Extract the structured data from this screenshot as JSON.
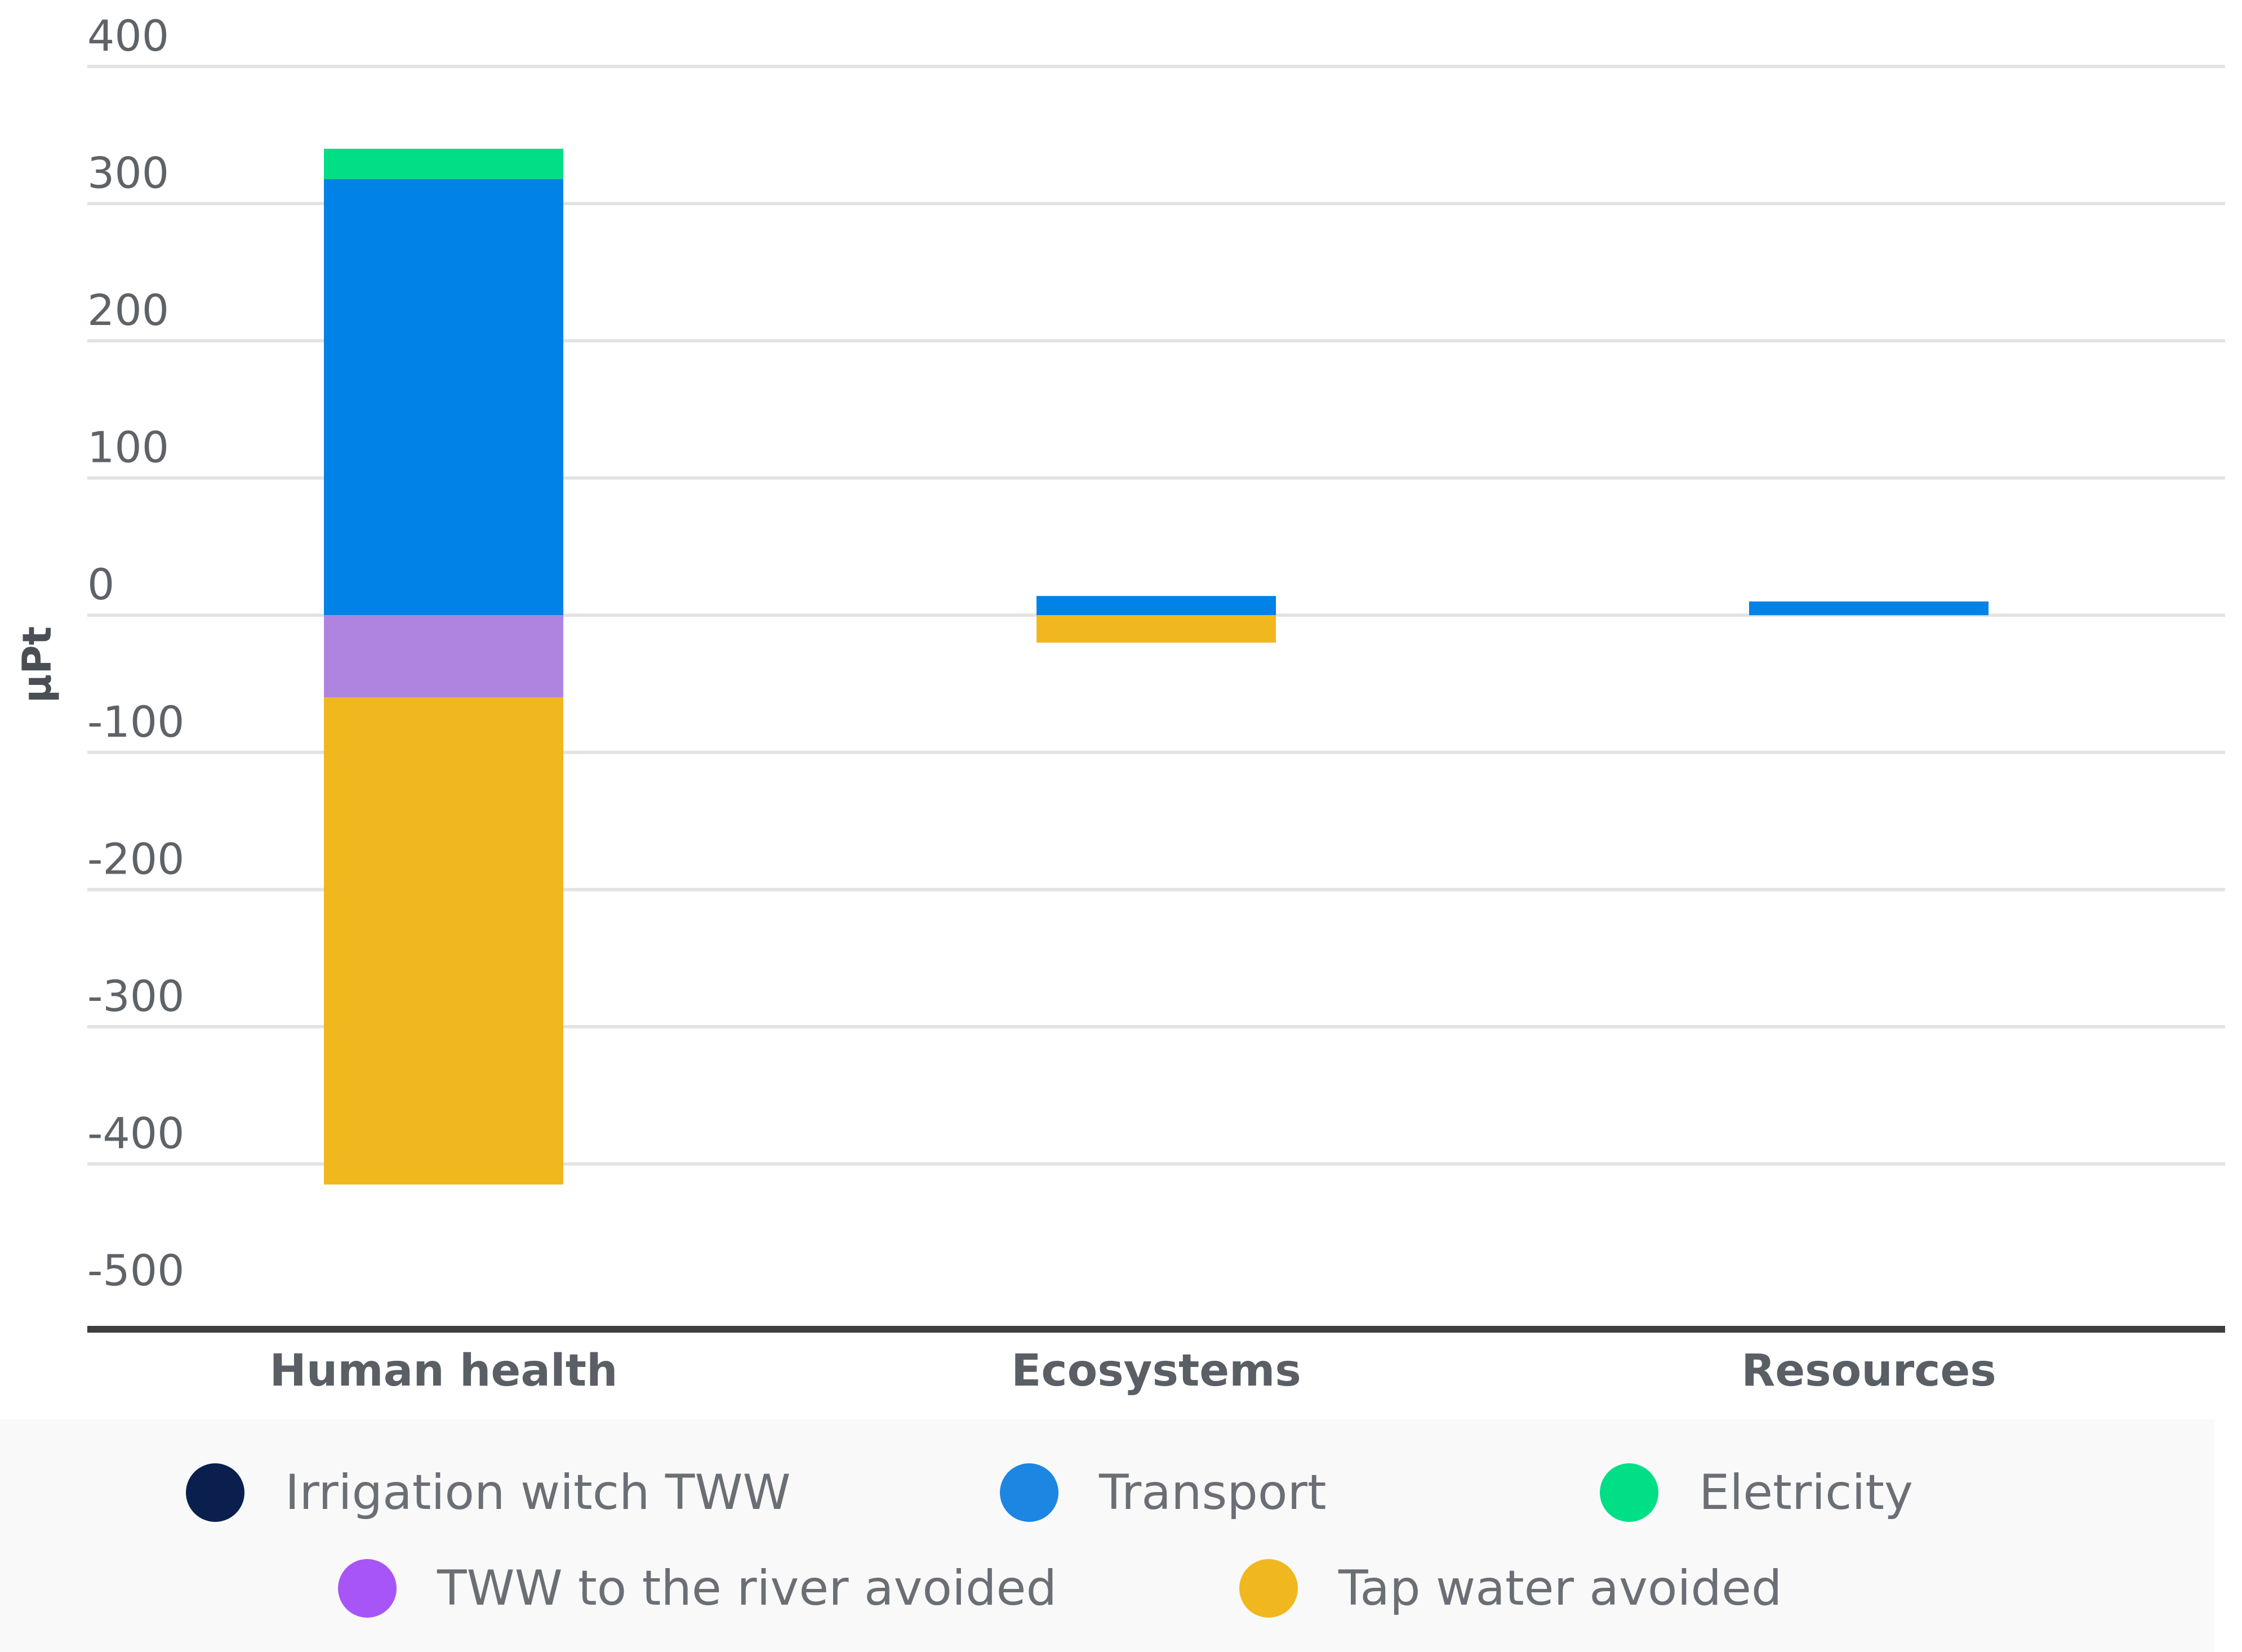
{
  "chart_data": {
    "type": "bar",
    "stacked": true,
    "categories": [
      "Human health",
      "Ecosystems",
      "Resources"
    ],
    "ylabel": "µPt",
    "xlabel": "",
    "ylim": [
      -500,
      400
    ],
    "yticks": [
      "400",
      "300",
      "200",
      "100",
      "0",
      "-100",
      "-200",
      "-300",
      "-400",
      "-500"
    ],
    "ytick_values": [
      400,
      300,
      200,
      100,
      0,
      -100,
      -200,
      -300,
      -400,
      -500
    ],
    "grid": true,
    "legend_position": "bottom",
    "series": [
      {
        "name": "Irrigation witch TWW",
        "color": "#0a1f4e",
        "values": [
          0,
          0,
          0
        ]
      },
      {
        "name": "Transport",
        "color": "#0082e6",
        "values": [
          318,
          14,
          10
        ]
      },
      {
        "name": "Eletricity",
        "color": "#00df86",
        "values": [
          22,
          0,
          0
        ]
      },
      {
        "name": "TWW to the river avoided",
        "color": "#ae84e0",
        "values": [
          -60,
          0,
          0
        ]
      },
      {
        "name": "Tap water avoided",
        "color": "#f0b81e",
        "values": [
          -355,
          -20,
          0
        ]
      }
    ]
  },
  "legend": {
    "dot_colors": [
      "#0a1f4e",
      "#1d86e2",
      "#00df86",
      "#a855f7",
      "#f0b81e"
    ]
  }
}
